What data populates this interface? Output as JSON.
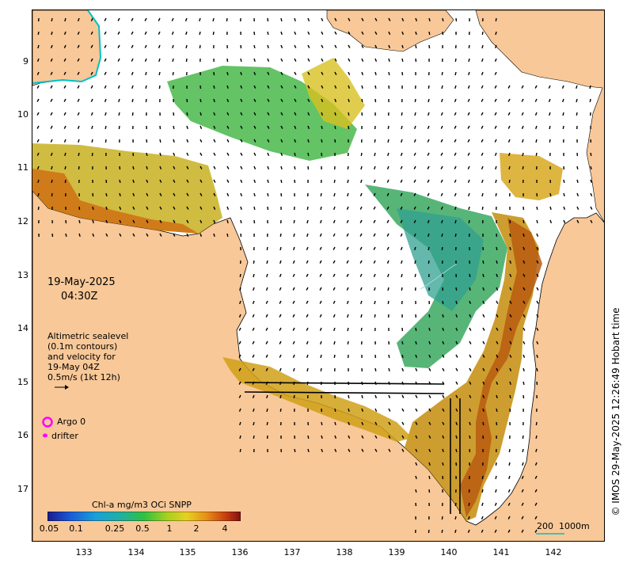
{
  "map": {
    "latitude_ticks": [
      "9",
      "10",
      "11",
      "12",
      "13",
      "14",
      "15",
      "16",
      "17"
    ],
    "longitude_ticks": [
      "133",
      "134",
      "135",
      "136",
      "137",
      "138",
      "139",
      "140",
      "141",
      "142"
    ],
    "land_color": "#f8c898",
    "ocean_color": "#ffffff"
  },
  "overlay": {
    "date": "19-May-2025",
    "time": "04:30Z",
    "sealevel_lines": [
      "Altimetric sealevel",
      "(0.1m contours)",
      "and velocity for",
      "19-May 04Z",
      "0.5m/s (1kt 12h)"
    ],
    "argo_label": "Argo 0",
    "drifter_label": "drifter",
    "argo_color": "#ff00ff"
  },
  "colorbar": {
    "title": "Chl-a mg/m3 OCi SNPP",
    "tick_labels": [
      "0.05",
      "0.1",
      "0.25",
      "0.5",
      "1",
      "2",
      "4"
    ]
  },
  "scale_bar": {
    "label_200": "200",
    "label_1000": "1000m"
  },
  "credit": "© IMOS 29-May-2025 12:26:49 Hobart time"
}
